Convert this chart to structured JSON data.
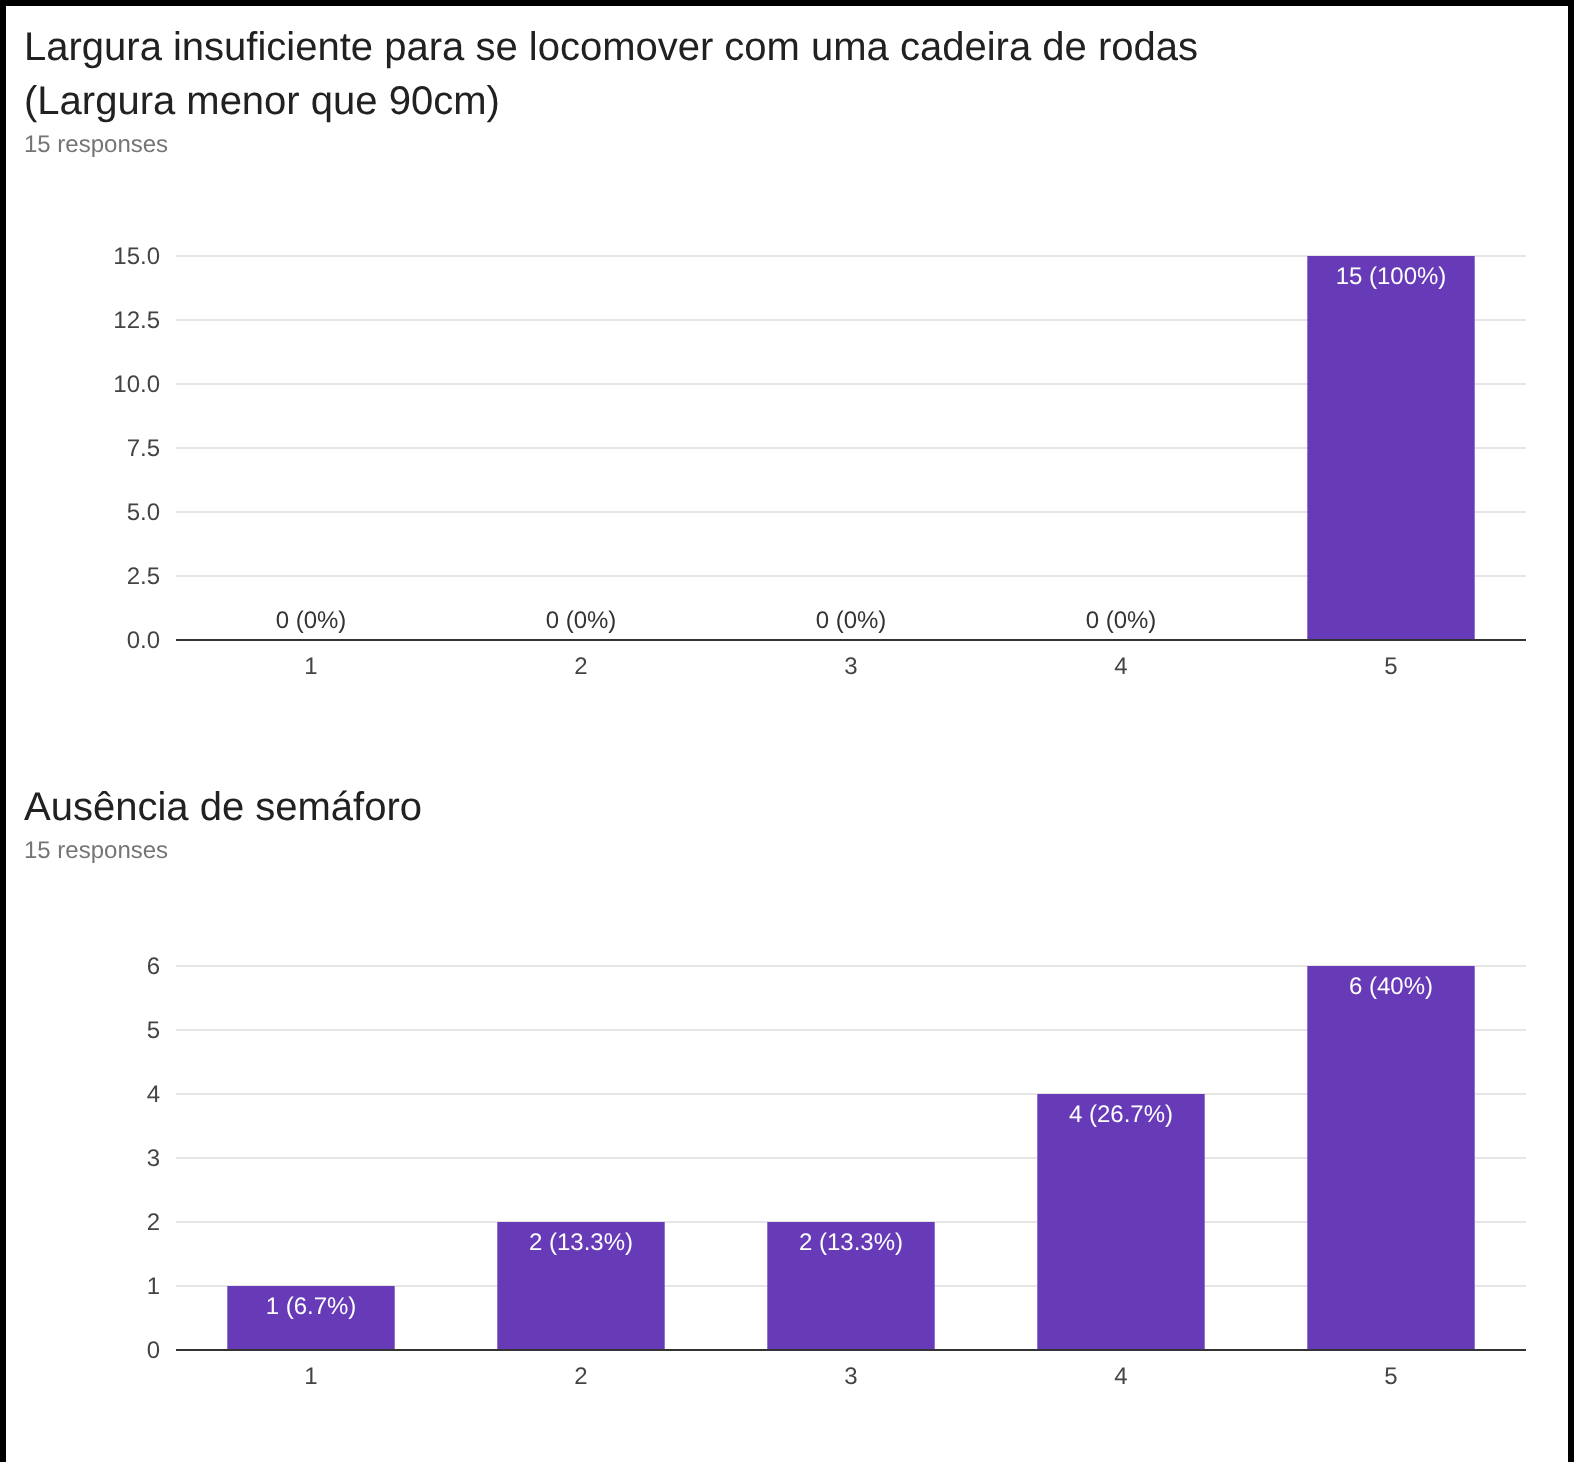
{
  "chart_data": [
    {
      "type": "bar",
      "title": "Largura insuficiente para se locomover com uma cadeira de rodas\n(Largura menor que 90cm)",
      "subtitle": "15 responses",
      "categories": [
        "1",
        "2",
        "3",
        "4",
        "5"
      ],
      "values": [
        0,
        0,
        0,
        0,
        15
      ],
      "value_labels": [
        "0 (0%)",
        "0 (0%)",
        "0 (0%)",
        "0 (0%)",
        "15 (100%)"
      ],
      "color": "#673ab7",
      "ylim": [
        0,
        15
      ],
      "yticks": [
        {
          "value": 0,
          "label": "0.0"
        },
        {
          "value": 2.5,
          "label": "2.5"
        },
        {
          "value": 5,
          "label": "5.0"
        },
        {
          "value": 7.5,
          "label": "7.5"
        },
        {
          "value": 10,
          "label": "10.0"
        },
        {
          "value": 12.5,
          "label": "12.5"
        },
        {
          "value": 15,
          "label": "15.0"
        }
      ],
      "grid": "y"
    },
    {
      "type": "bar",
      "title": "Ausência de semáforo",
      "subtitle": "15 responses",
      "categories": [
        "1",
        "2",
        "3",
        "4",
        "5"
      ],
      "values": [
        1,
        2,
        2,
        4,
        6
      ],
      "value_labels": [
        "1 (6.7%)",
        "2 (13.3%)",
        "2 (13.3%)",
        "4 (26.7%)",
        "6 (40%)"
      ],
      "color": "#673ab7",
      "ylim": [
        0,
        6
      ],
      "yticks": [
        0,
        1,
        2,
        3,
        4,
        5,
        6
      ],
      "grid": "y"
    }
  ]
}
